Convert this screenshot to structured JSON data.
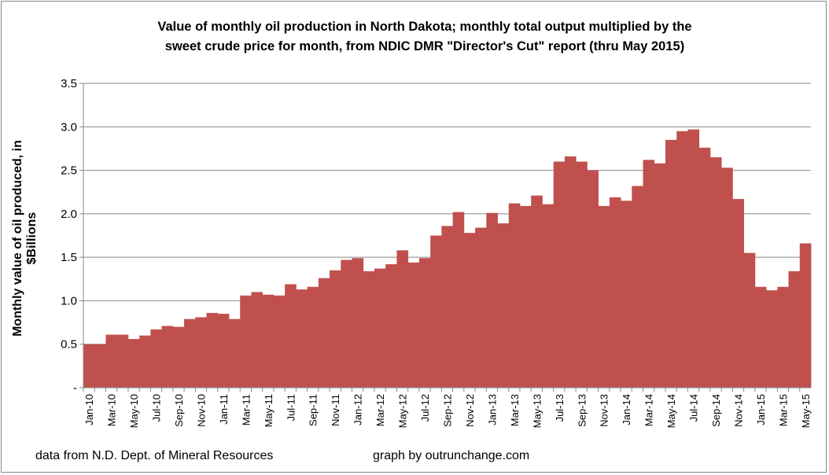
{
  "chart_data": {
    "type": "bar",
    "title_line1": "Value of monthly oil production  in North Dakota; monthly total output multiplied  by the",
    "title_line2": "sweet crude price for month,  from NDIC DMR \"Director's Cut\" report  (thru May 2015)",
    "xlabel": "",
    "ylabel": "Monthly value of oil produced, in $Billions",
    "ylim": [
      0,
      3.5
    ],
    "yticks": [
      0,
      0.5,
      1.0,
      1.5,
      2.0,
      2.5,
      3.0,
      3.5
    ],
    "ytick_labels": [
      "-",
      "0.5",
      "1.0",
      "1.5",
      "2.0",
      "2.5",
      "3.0",
      "3.5"
    ],
    "grid": true,
    "color": "#c0504d",
    "categories": [
      "Jan-10",
      "Feb-10",
      "Mar-10",
      "Apr-10",
      "May-10",
      "Jun-10",
      "Jul-10",
      "Aug-10",
      "Sep-10",
      "Oct-10",
      "Nov-10",
      "Dec-10",
      "Jan-11",
      "Feb-11",
      "Mar-11",
      "Apr-11",
      "May-11",
      "Jun-11",
      "Jul-11",
      "Aug-11",
      "Sep-11",
      "Oct-11",
      "Nov-11",
      "Dec-11",
      "Jan-12",
      "Feb-12",
      "Mar-12",
      "Apr-12",
      "May-12",
      "Jun-12",
      "Jul-12",
      "Aug-12",
      "Sep-12",
      "Oct-12",
      "Nov-12",
      "Dec-12",
      "Jan-13",
      "Feb-13",
      "Mar-13",
      "Apr-13",
      "May-13",
      "Jun-13",
      "Jul-13",
      "Aug-13",
      "Sep-13",
      "Oct-13",
      "Nov-13",
      "Dec-13",
      "Jan-14",
      "Feb-14",
      "Mar-14",
      "Apr-14",
      "May-14",
      "Jun-14",
      "Jul-14",
      "Aug-14",
      "Sep-14",
      "Oct-14",
      "Nov-14",
      "Dec-14",
      "Jan-15",
      "Feb-15",
      "Mar-15",
      "Apr-15",
      "May-15"
    ],
    "values": [
      0.5,
      0.5,
      0.61,
      0.61,
      0.56,
      0.6,
      0.67,
      0.71,
      0.7,
      0.79,
      0.81,
      0.86,
      0.85,
      0.79,
      1.06,
      1.1,
      1.07,
      1.06,
      1.19,
      1.13,
      1.16,
      1.26,
      1.35,
      1.47,
      1.49,
      1.34,
      1.37,
      1.42,
      1.58,
      1.44,
      1.49,
      1.75,
      1.86,
      2.02,
      1.78,
      1.84,
      2.01,
      1.89,
      2.12,
      2.09,
      2.21,
      2.11,
      2.6,
      2.66,
      2.6,
      2.5,
      2.09,
      2.19,
      2.15,
      2.32,
      2.62,
      2.58,
      2.85,
      2.95,
      2.97,
      2.76,
      2.65,
      2.53,
      2.17,
      1.55,
      1.16,
      1.12,
      1.16,
      1.34,
      1.66
    ],
    "label_every": 2
  },
  "footer": {
    "source": "data from N.D. Dept. of Mineral Resources",
    "credit": "graph by outrunchange.com"
  }
}
